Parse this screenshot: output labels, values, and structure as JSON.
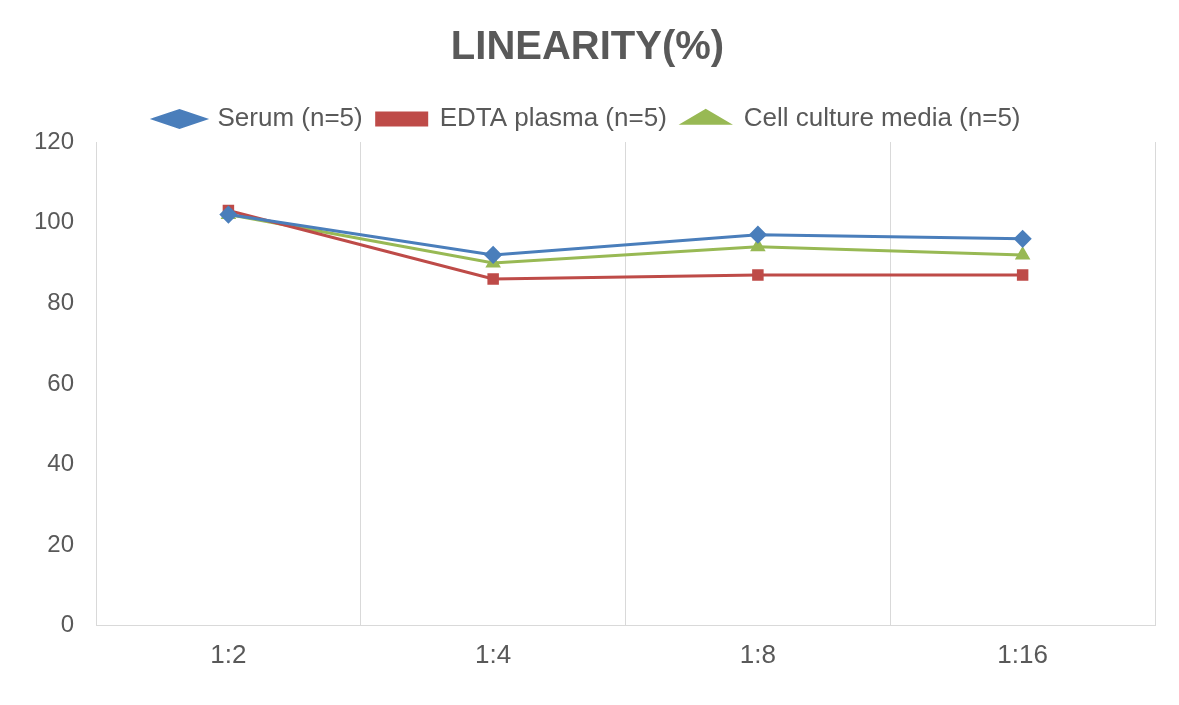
{
  "chart_data": {
    "type": "line",
    "title": "LINEARITY(%)",
    "categories": [
      "1:2",
      "1:4",
      "1:8",
      "1:16"
    ],
    "series": [
      {
        "name": "Serum (n=5)",
        "color": "#4a7ebb",
        "marker": "diamond",
        "values": [
          102,
          92,
          97,
          96
        ]
      },
      {
        "name": "EDTA plasma (n=5)",
        "color": "#be4b48",
        "marker": "square",
        "values": [
          103,
          86,
          87,
          87
        ]
      },
      {
        "name": "Cell culture media (n=5)",
        "color": "#98b954",
        "marker": "triangle",
        "values": [
          102,
          90,
          94,
          92
        ]
      }
    ],
    "ylim": [
      0,
      120
    ],
    "yticks": [
      0,
      20,
      40,
      60,
      80,
      100,
      120
    ],
    "grid": true,
    "legend": "top"
  }
}
